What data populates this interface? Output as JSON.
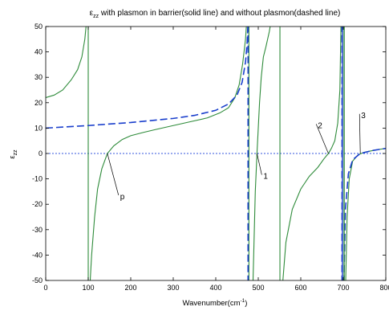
{
  "chart_data": {
    "type": "line",
    "title": "ε_zz with plasmon in barrier(solid line) and without plasmon(dashed line)",
    "title_parts": {
      "symbol": "ε",
      "subscript": "zz",
      "rest": "with plasmon in barrier(solid line) and without plasmon(dashed line)"
    },
    "xlabel": "Wavenumber(cm⁻¹)",
    "xlabel_parts": {
      "main": "Wavenumber(cm",
      "sup": "-1",
      "close": ")"
    },
    "ylabel": "ε_zz",
    "ylabel_parts": {
      "symbol": "ε",
      "subscript": "zz"
    },
    "xlim": [
      0,
      800
    ],
    "ylim": [
      -50,
      50
    ],
    "xticks": [
      0,
      100,
      200,
      300,
      400,
      500,
      600,
      700,
      800
    ],
    "yticks": [
      -50,
      -40,
      -30,
      -20,
      -10,
      0,
      10,
      20,
      30,
      40,
      50
    ],
    "tick_labels_x": [
      "0",
      "100",
      "200",
      "300",
      "400",
      "500",
      "600",
      "700",
      "800"
    ],
    "tick_labels_y": [
      "-50",
      "-40",
      "-30",
      "-20",
      "-10",
      "0",
      "10",
      "20",
      "30",
      "40",
      "50"
    ],
    "grid": false,
    "colors": {
      "solid": "#2e8b3a",
      "dashed": "#1a3fcc",
      "zero_line": "#3355dd"
    },
    "series": [
      {
        "style": "solid",
        "color": "#2e8b3a",
        "segments": [
          [
            [
              0,
              22
            ],
            [
              20,
              23
            ],
            [
              40,
              25
            ],
            [
              60,
              29
            ],
            [
              75,
              33
            ],
            [
              85,
              38
            ],
            [
              92,
              45
            ],
            [
              96,
              52
            ]
          ],
          [
            [
              100,
              -55
            ],
            [
              100,
              55
            ]
          ],
          [
            [
              104,
              -52
            ],
            [
              108,
              -40
            ],
            [
              115,
              -25
            ],
            [
              122,
              -14
            ],
            [
              132,
              -6
            ],
            [
              145,
              0
            ],
            [
              160,
              3
            ],
            [
              180,
              5.5
            ],
            [
              200,
              7
            ],
            [
              230,
              8.3
            ],
            [
              260,
              9.5
            ],
            [
              300,
              11
            ],
            [
              340,
              12.5
            ],
            [
              380,
              14
            ],
            [
              410,
              16
            ],
            [
              430,
              18
            ],
            [
              445,
              22
            ],
            [
              455,
              27
            ],
            [
              463,
              35
            ],
            [
              470,
              45
            ],
            [
              474,
              55
            ]
          ],
          [
            [
              478,
              -55
            ],
            [
              478,
              55
            ]
          ],
          [
            [
              487,
              -55
            ],
            [
              490,
              -35
            ],
            [
              493,
              -15
            ],
            [
              497,
              0
            ],
            [
              500,
              10
            ],
            [
              503,
              20
            ],
            [
              507,
              30
            ],
            [
              512,
              38
            ],
            [
              518,
              42
            ],
            [
              526,
              48
            ],
            [
              530,
              52
            ]
          ],
          [
            [
              551,
              -55
            ],
            [
              551,
              55
            ]
          ],
          [
            [
              557,
              -52
            ],
            [
              565,
              -35
            ],
            [
              580,
              -22
            ],
            [
              600,
              -14
            ],
            [
              620,
              -9
            ],
            [
              640,
              -5.5
            ],
            [
              655,
              -2
            ],
            [
              665,
              0
            ],
            [
              672,
              2
            ],
            [
              680,
              5
            ],
            [
              687,
              12
            ],
            [
              692,
              25
            ],
            [
              695,
              55
            ]
          ],
          [
            [
              705,
              -55
            ],
            [
              709,
              -25
            ],
            [
              714,
              -10
            ],
            [
              722,
              -3
            ],
            [
              735,
              -0.5
            ],
            [
              750,
              0.5
            ],
            [
              765,
              1
            ],
            [
              780,
              1.5
            ],
            [
              800,
              2
            ]
          ]
        ]
      },
      {
        "style": "dashed",
        "color": "#1a3fcc",
        "segments": [
          [
            [
              0,
              10
            ],
            [
              50,
              10.5
            ],
            [
              100,
              11
            ],
            [
              150,
              11.6
            ],
            [
              200,
              12.2
            ],
            [
              250,
              13
            ],
            [
              300,
              13.8
            ],
            [
              350,
              15
            ],
            [
              400,
              17
            ],
            [
              430,
              19.5
            ],
            [
              450,
              23
            ],
            [
              462,
              28
            ],
            [
              470,
              36
            ],
            [
              474,
              44
            ],
            [
              476,
              52
            ]
          ],
          [
            [
              476,
              -55
            ],
            [
              476,
              55
            ]
          ],
          [
            [
              697,
              -55
            ],
            [
              697,
              55
            ]
          ],
          [
            [
              701,
              -55
            ],
            [
              705,
              -22
            ],
            [
              712,
              -8
            ],
            [
              722,
              -2.5
            ],
            [
              740,
              0
            ],
            [
              770,
              1.2
            ],
            [
              800,
              2
            ]
          ]
        ]
      }
    ],
    "vertical_lines": [
      {
        "x": 698,
        "color": "#1a3fcc",
        "style": "solid"
      },
      {
        "x": 702,
        "color": "#2e8b3a",
        "style": "solid"
      }
    ],
    "zero_line": {
      "y": 0,
      "style": "dotted"
    },
    "annotations": [
      {
        "label": "p",
        "point": [
          145,
          0
        ],
        "text_at": [
          175,
          -18
        ]
      },
      {
        "label": "1",
        "point": [
          497,
          0
        ],
        "text_at": [
          512,
          -10
        ]
      },
      {
        "label": "2",
        "point": [
          665,
          0
        ],
        "text_at": [
          640,
          10
        ]
      },
      {
        "label": "3",
        "point": [
          740,
          0
        ],
        "text_at": [
          742,
          14
        ]
      }
    ]
  }
}
